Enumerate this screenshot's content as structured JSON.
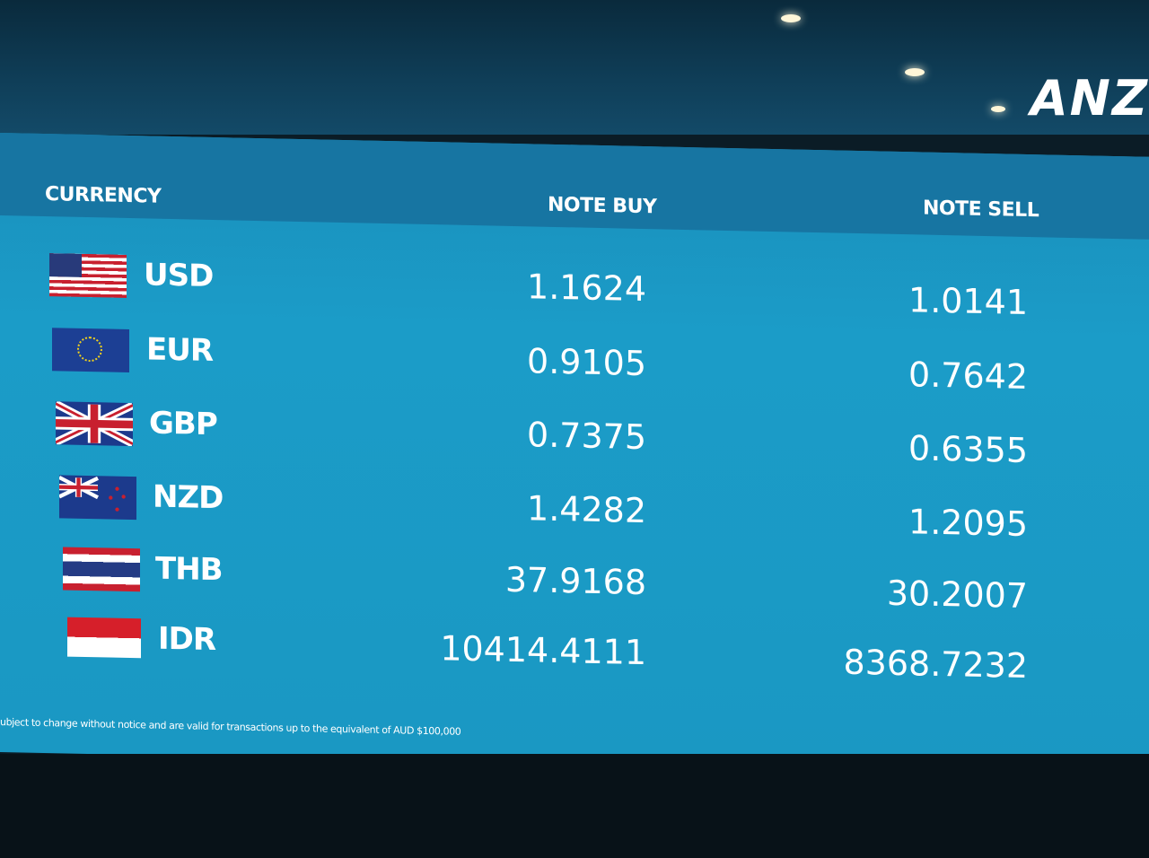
{
  "brand": {
    "logo_text": "ANZ"
  },
  "table": {
    "headers": {
      "currency": "CURRENCY",
      "note_buy": "NOTE BUY",
      "note_sell": "NOTE SELL"
    },
    "rows": [
      {
        "code": "USD",
        "flag": "us-flag",
        "note_buy": "1.1624",
        "note_sell": "1.0141"
      },
      {
        "code": "EUR",
        "flag": "eu-flag",
        "note_buy": "0.9105",
        "note_sell": "0.7642"
      },
      {
        "code": "GBP",
        "flag": "uk-flag",
        "note_buy": "0.7375",
        "note_sell": "0.6355"
      },
      {
        "code": "NZD",
        "flag": "nz-flag",
        "note_buy": "1.4282",
        "note_sell": "1.2095"
      },
      {
        "code": "THB",
        "flag": "thailand-flag",
        "note_buy": "37.9168",
        "note_sell": "30.2007"
      },
      {
        "code": "IDR",
        "flag": "indonesia-flag",
        "note_buy": "10414.4111",
        "note_sell": "8368.7232"
      }
    ]
  },
  "footnote": "ubject to change without notice and are valid for transactions up to the equivalent of AUD $100,000",
  "colors": {
    "screen": "#1a98c3",
    "header": "#1775a2",
    "text": "#ffffff"
  }
}
